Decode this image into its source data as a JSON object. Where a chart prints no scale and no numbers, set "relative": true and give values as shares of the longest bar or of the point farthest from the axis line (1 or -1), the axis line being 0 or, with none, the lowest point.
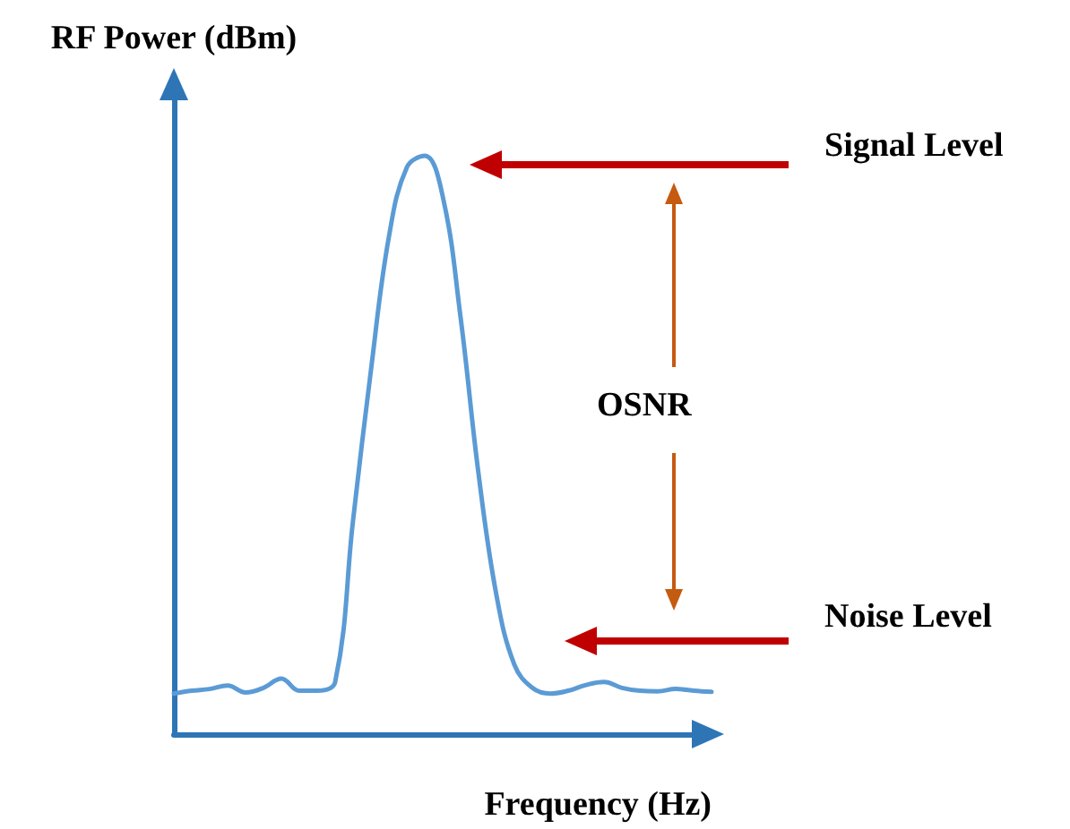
{
  "chart_data": {
    "type": "line",
    "relative": true,
    "xlabel": "Frequency (Hz)",
    "ylabel": "RF Power (dBm)",
    "categories": [
      null,
      null,
      null,
      null,
      null,
      null,
      null,
      null,
      null,
      null,
      null,
      null,
      null,
      null,
      null,
      null,
      null,
      null,
      null,
      null,
      null,
      null,
      null,
      null,
      null,
      null,
      null,
      null,
      null,
      null,
      null
    ],
    "series": [
      {
        "color": "#5b9bd5",
        "values": [
          0.07,
          0.075,
          0.078,
          0.084,
          0.072,
          0.08,
          0.096,
          0.075,
          0.075,
          0.09,
          0.37,
          0.63,
          0.86,
          0.98,
          1,
          0.93,
          0.72,
          0.45,
          0.24,
          0.12,
          0.08,
          0.07,
          0.075,
          0.085,
          0.09,
          0.08,
          0.075,
          0.074,
          0.078,
          0.075,
          0.073
        ]
      }
    ],
    "annotations": [
      "Signal Level",
      "OSNR",
      "Noise Level"
    ],
    "marker": "none",
    "line_style": "solid"
  }
}
